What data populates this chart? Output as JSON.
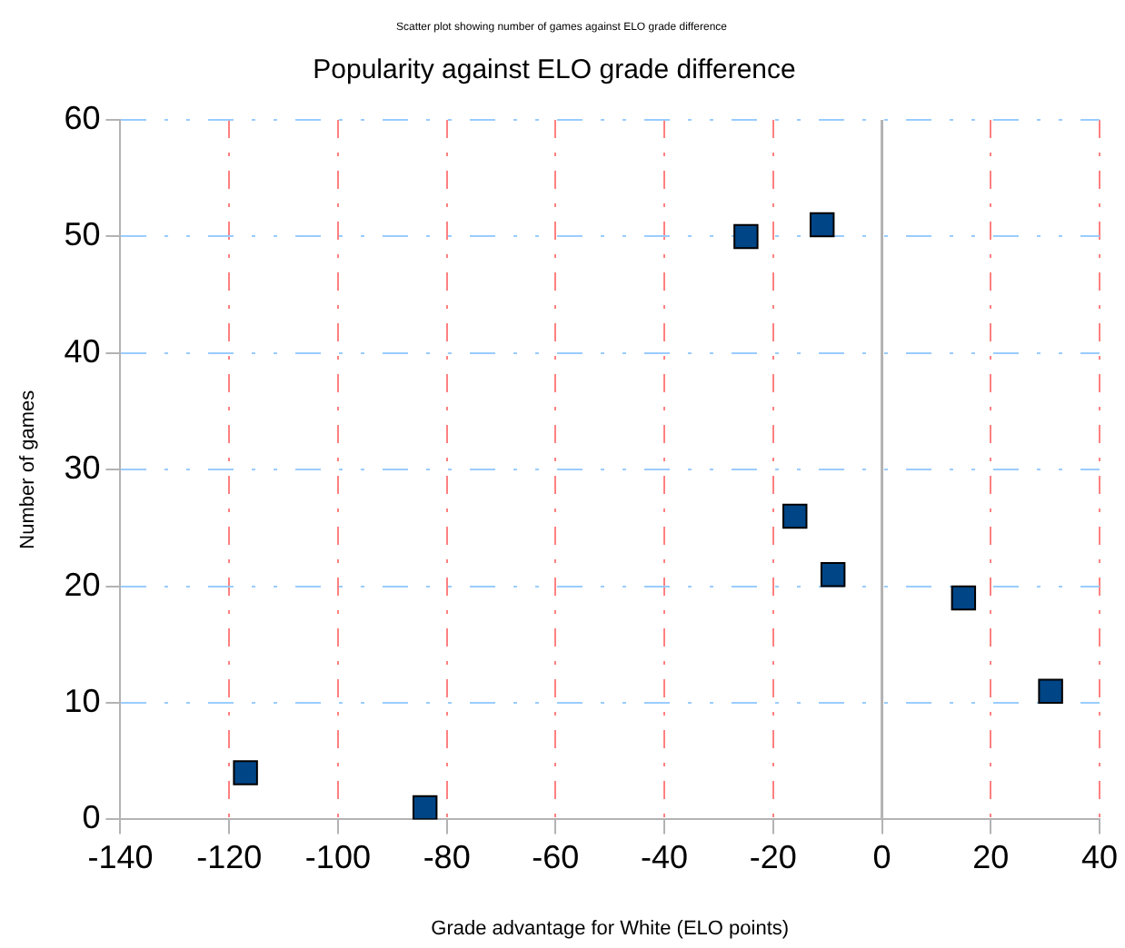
{
  "chart_data": {
    "type": "scatter",
    "title": "Popularity against ELO grade difference",
    "xlabel": "Grade advantage for White (ELO points)",
    "ylabel": "Number of games",
    "annotations": [
      "Scatter plot showing number of games against ELO grade difference"
    ],
    "series": [
      {
        "color": "#004586",
        "x": [
          -117,
          -84,
          -25,
          -11,
          -16,
          -9,
          15,
          31
        ],
        "values": [
          4,
          1,
          50,
          51,
          26,
          21,
          19,
          11
        ]
      }
    ],
    "xlim": [
      -140,
      40
    ],
    "xticks": [
      -140,
      -120,
      -100,
      -80,
      -60,
      -40,
      -20,
      0,
      20,
      40
    ],
    "ylim": [
      0,
      60
    ],
    "yticks": [
      0,
      10,
      20,
      30,
      40,
      50,
      60
    ],
    "ref_lines": [
      {
        "axis": "x",
        "value": 0,
        "color": "#b3b3b3"
      }
    ],
    "grid": true,
    "legend": false,
    "marker": "square"
  }
}
